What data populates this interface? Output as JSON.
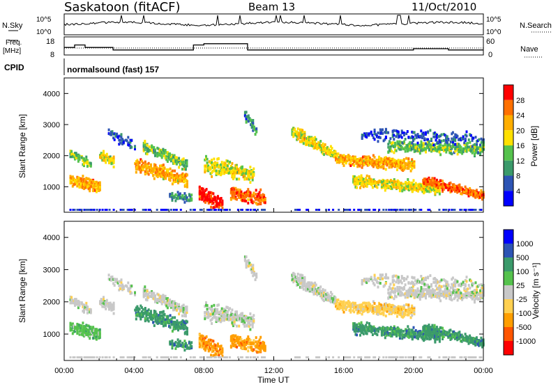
{
  "header": {
    "site": "Saskatoon (fitACF)",
    "beam": "Beam 13",
    "date": "11/Oct/2010"
  },
  "top_panels": {
    "nsky_label": "N.Sky",
    "nsky_ticks": [
      "10^5",
      "10^0"
    ],
    "nsearch_label": "N.Search",
    "nsearch_ticks": [
      "10^5",
      "10^0"
    ],
    "freq_label_1": "Freq.",
    "freq_label_2": "[MHz]",
    "freq_ticks": [
      "18",
      "8"
    ],
    "nave_label": "Nave",
    "nave_ticks": [
      "60",
      "0"
    ],
    "cpid_label": "CPID",
    "cpid_text": "normalsound (fast) 157"
  },
  "colors": {
    "scale_power": [
      "#0000ff",
      "#2d54b4",
      "#3b9a6b",
      "#55c24d",
      "#ffe000",
      "#ffae00",
      "#ff7000",
      "#ff0000"
    ],
    "scale_velocity": [
      "#ff0000",
      "#ff5500",
      "#ff9e00",
      "#ffd050",
      "#c8c8c8",
      "#55c24d",
      "#3b9a6b",
      "#2d54b4",
      "#0000ff"
    ]
  },
  "chart_data": [
    {
      "type": "heatmap",
      "title": "",
      "ylabel": "Slant Range [km]",
      "xlabel": "Time UT",
      "ylim": [
        180,
        4500
      ],
      "y_ticks": [
        "1000",
        "2000",
        "3000",
        "4000"
      ],
      "x_ticks": [
        "00:00",
        "04:00",
        "08:00",
        "12:00",
        "16:00",
        "20:00",
        "00:00"
      ],
      "colorbar_label": "Power [dB]",
      "colorbar_ticks": [
        "4",
        "8",
        "12",
        "16",
        "20",
        "24",
        "28"
      ]
    },
    {
      "type": "heatmap",
      "title": "",
      "ylabel": "Slant Range [km]",
      "xlabel": "Time UT",
      "ylim": [
        180,
        4500
      ],
      "y_ticks": [
        "1000",
        "2000",
        "3000",
        "4000"
      ],
      "x_ticks": [
        "00:00",
        "04:00",
        "08:00",
        "12:00",
        "16:00",
        "20:00",
        "00:00"
      ],
      "colorbar_label": "Velocity [m s⁻¹]",
      "colorbar_ticks": [
        "1000",
        "500",
        "100",
        "25",
        "-25",
        "-100",
        "-500",
        "-1000"
      ]
    }
  ]
}
